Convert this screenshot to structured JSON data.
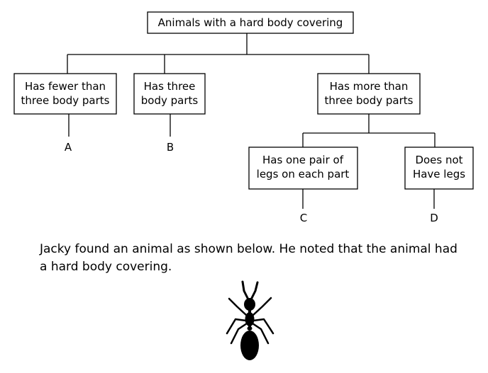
{
  "tree": {
    "root": "Animals with a hard body covering",
    "nodes": {
      "fewer": {
        "line1": "Has fewer than",
        "line2": "three body parts",
        "leaf": "A"
      },
      "three": {
        "line1": "Has three",
        "line2": "body parts",
        "leaf": "B"
      },
      "more": {
        "line1": "Has more than",
        "line2": "three body parts"
      },
      "one_pair": {
        "line1": "Has one pair of",
        "line2": "legs on each part",
        "leaf": "C"
      },
      "no_legs": {
        "line1": "Does not",
        "line2": "Have legs",
        "leaf": "D"
      }
    }
  },
  "caption": "Jacky found an animal as shown below. He noted that the animal had a hard body covering.",
  "illustration": {
    "icon": "ant-icon",
    "color": "#000000"
  }
}
